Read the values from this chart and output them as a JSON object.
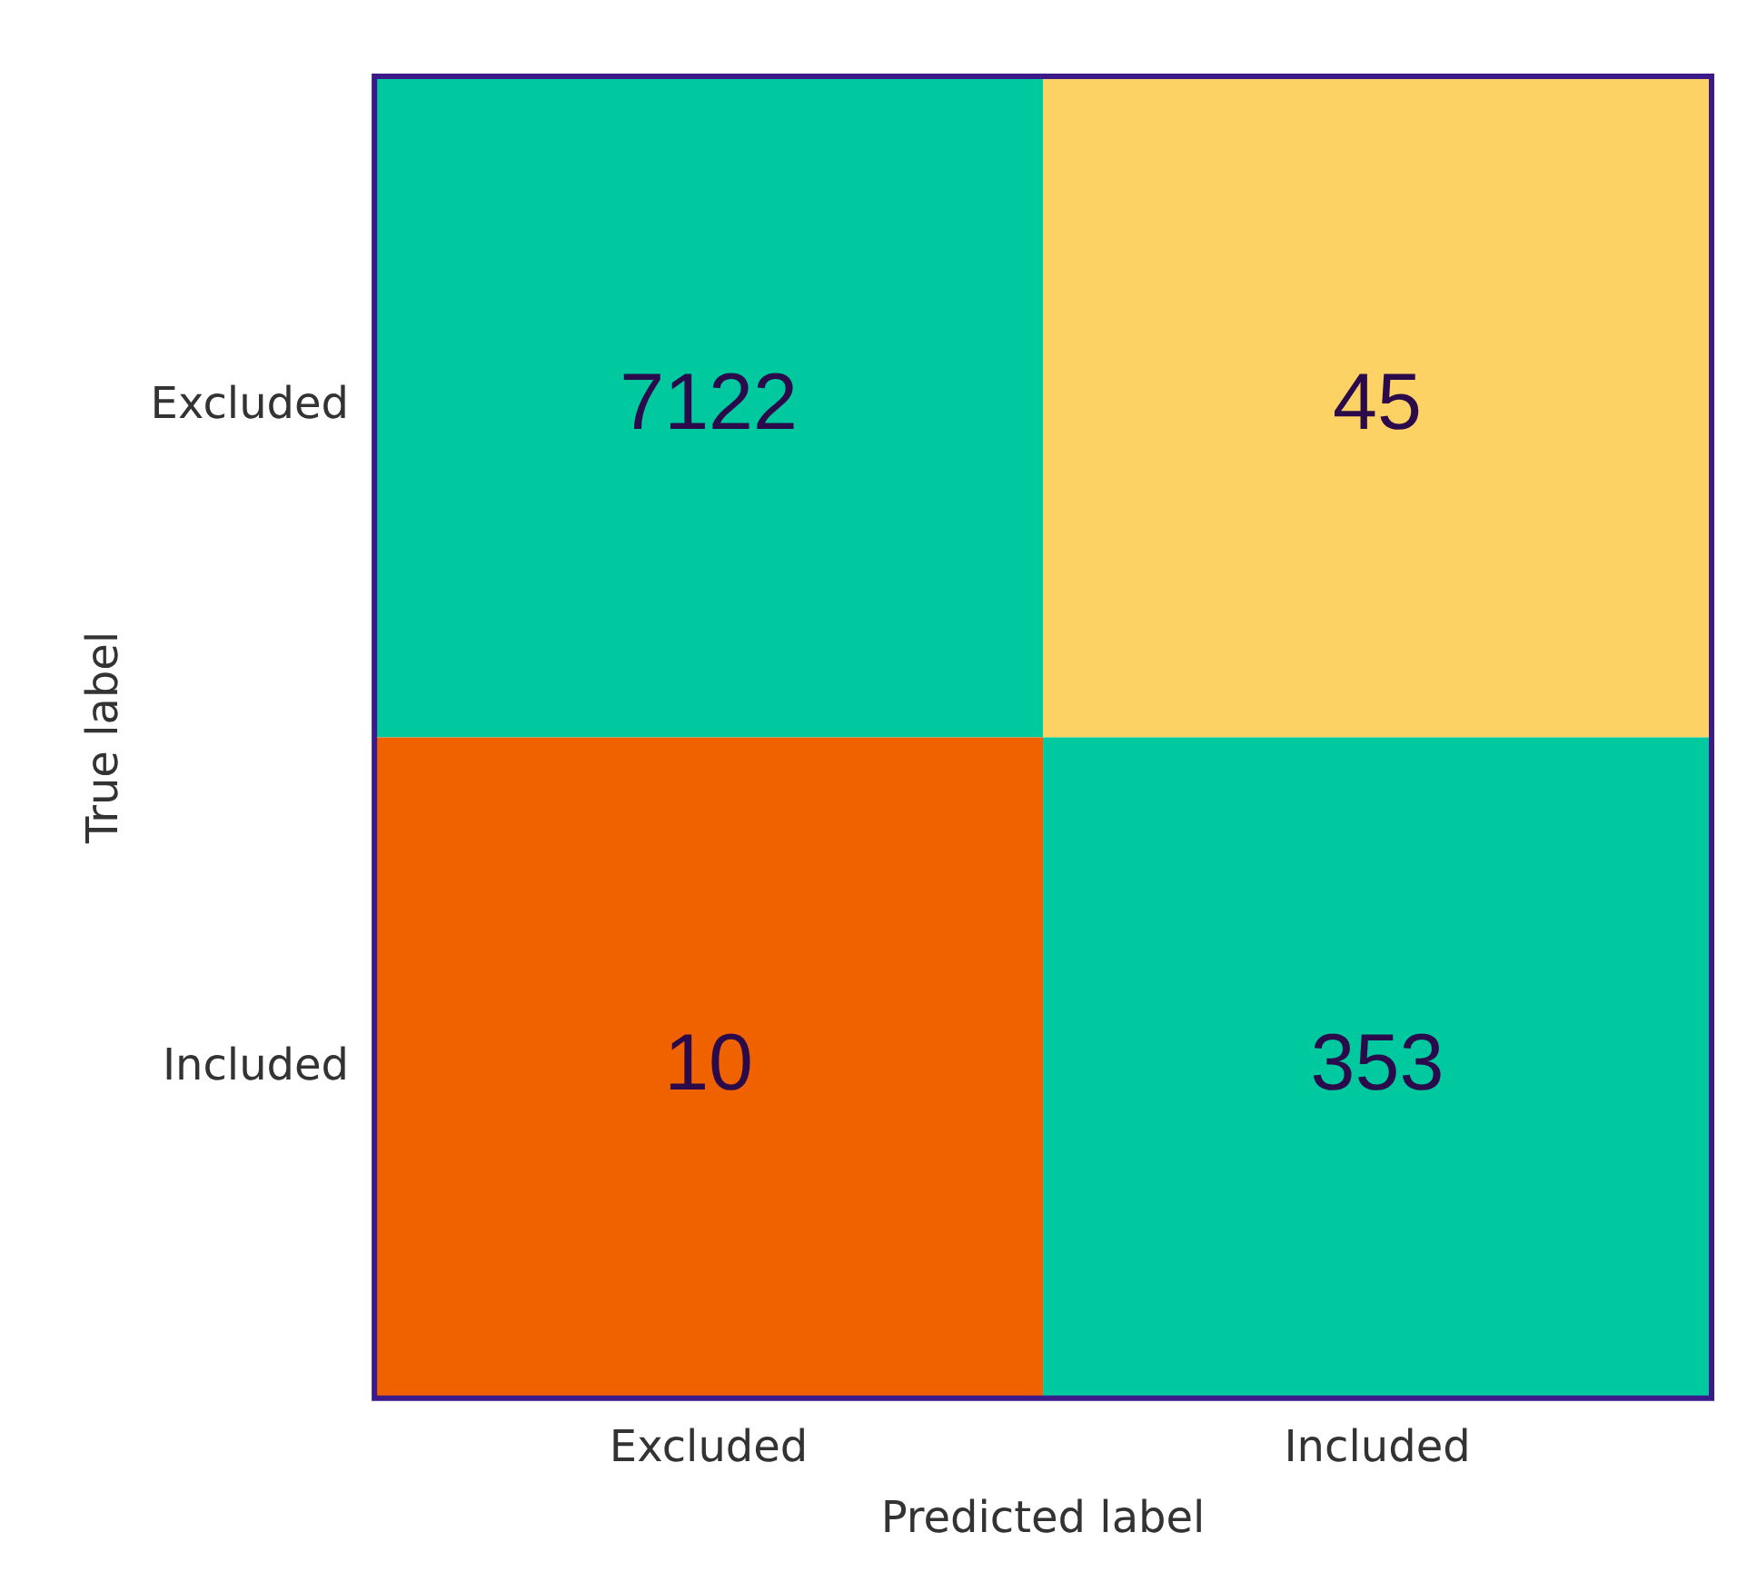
{
  "chart_data": {
    "type": "heatmap",
    "xlabel": "Predicted label",
    "ylabel": "True label",
    "categories": [
      "Excluded",
      "Included"
    ],
    "y_categories": [
      "Excluded",
      "Included"
    ],
    "cells": [
      [
        7122,
        45
      ],
      [
        10,
        353
      ]
    ],
    "colors": [
      [
        "#00c9a0",
        "#fcd265"
      ],
      [
        "#f06200",
        "#00c9a0"
      ]
    ],
    "data_labels": true
  }
}
